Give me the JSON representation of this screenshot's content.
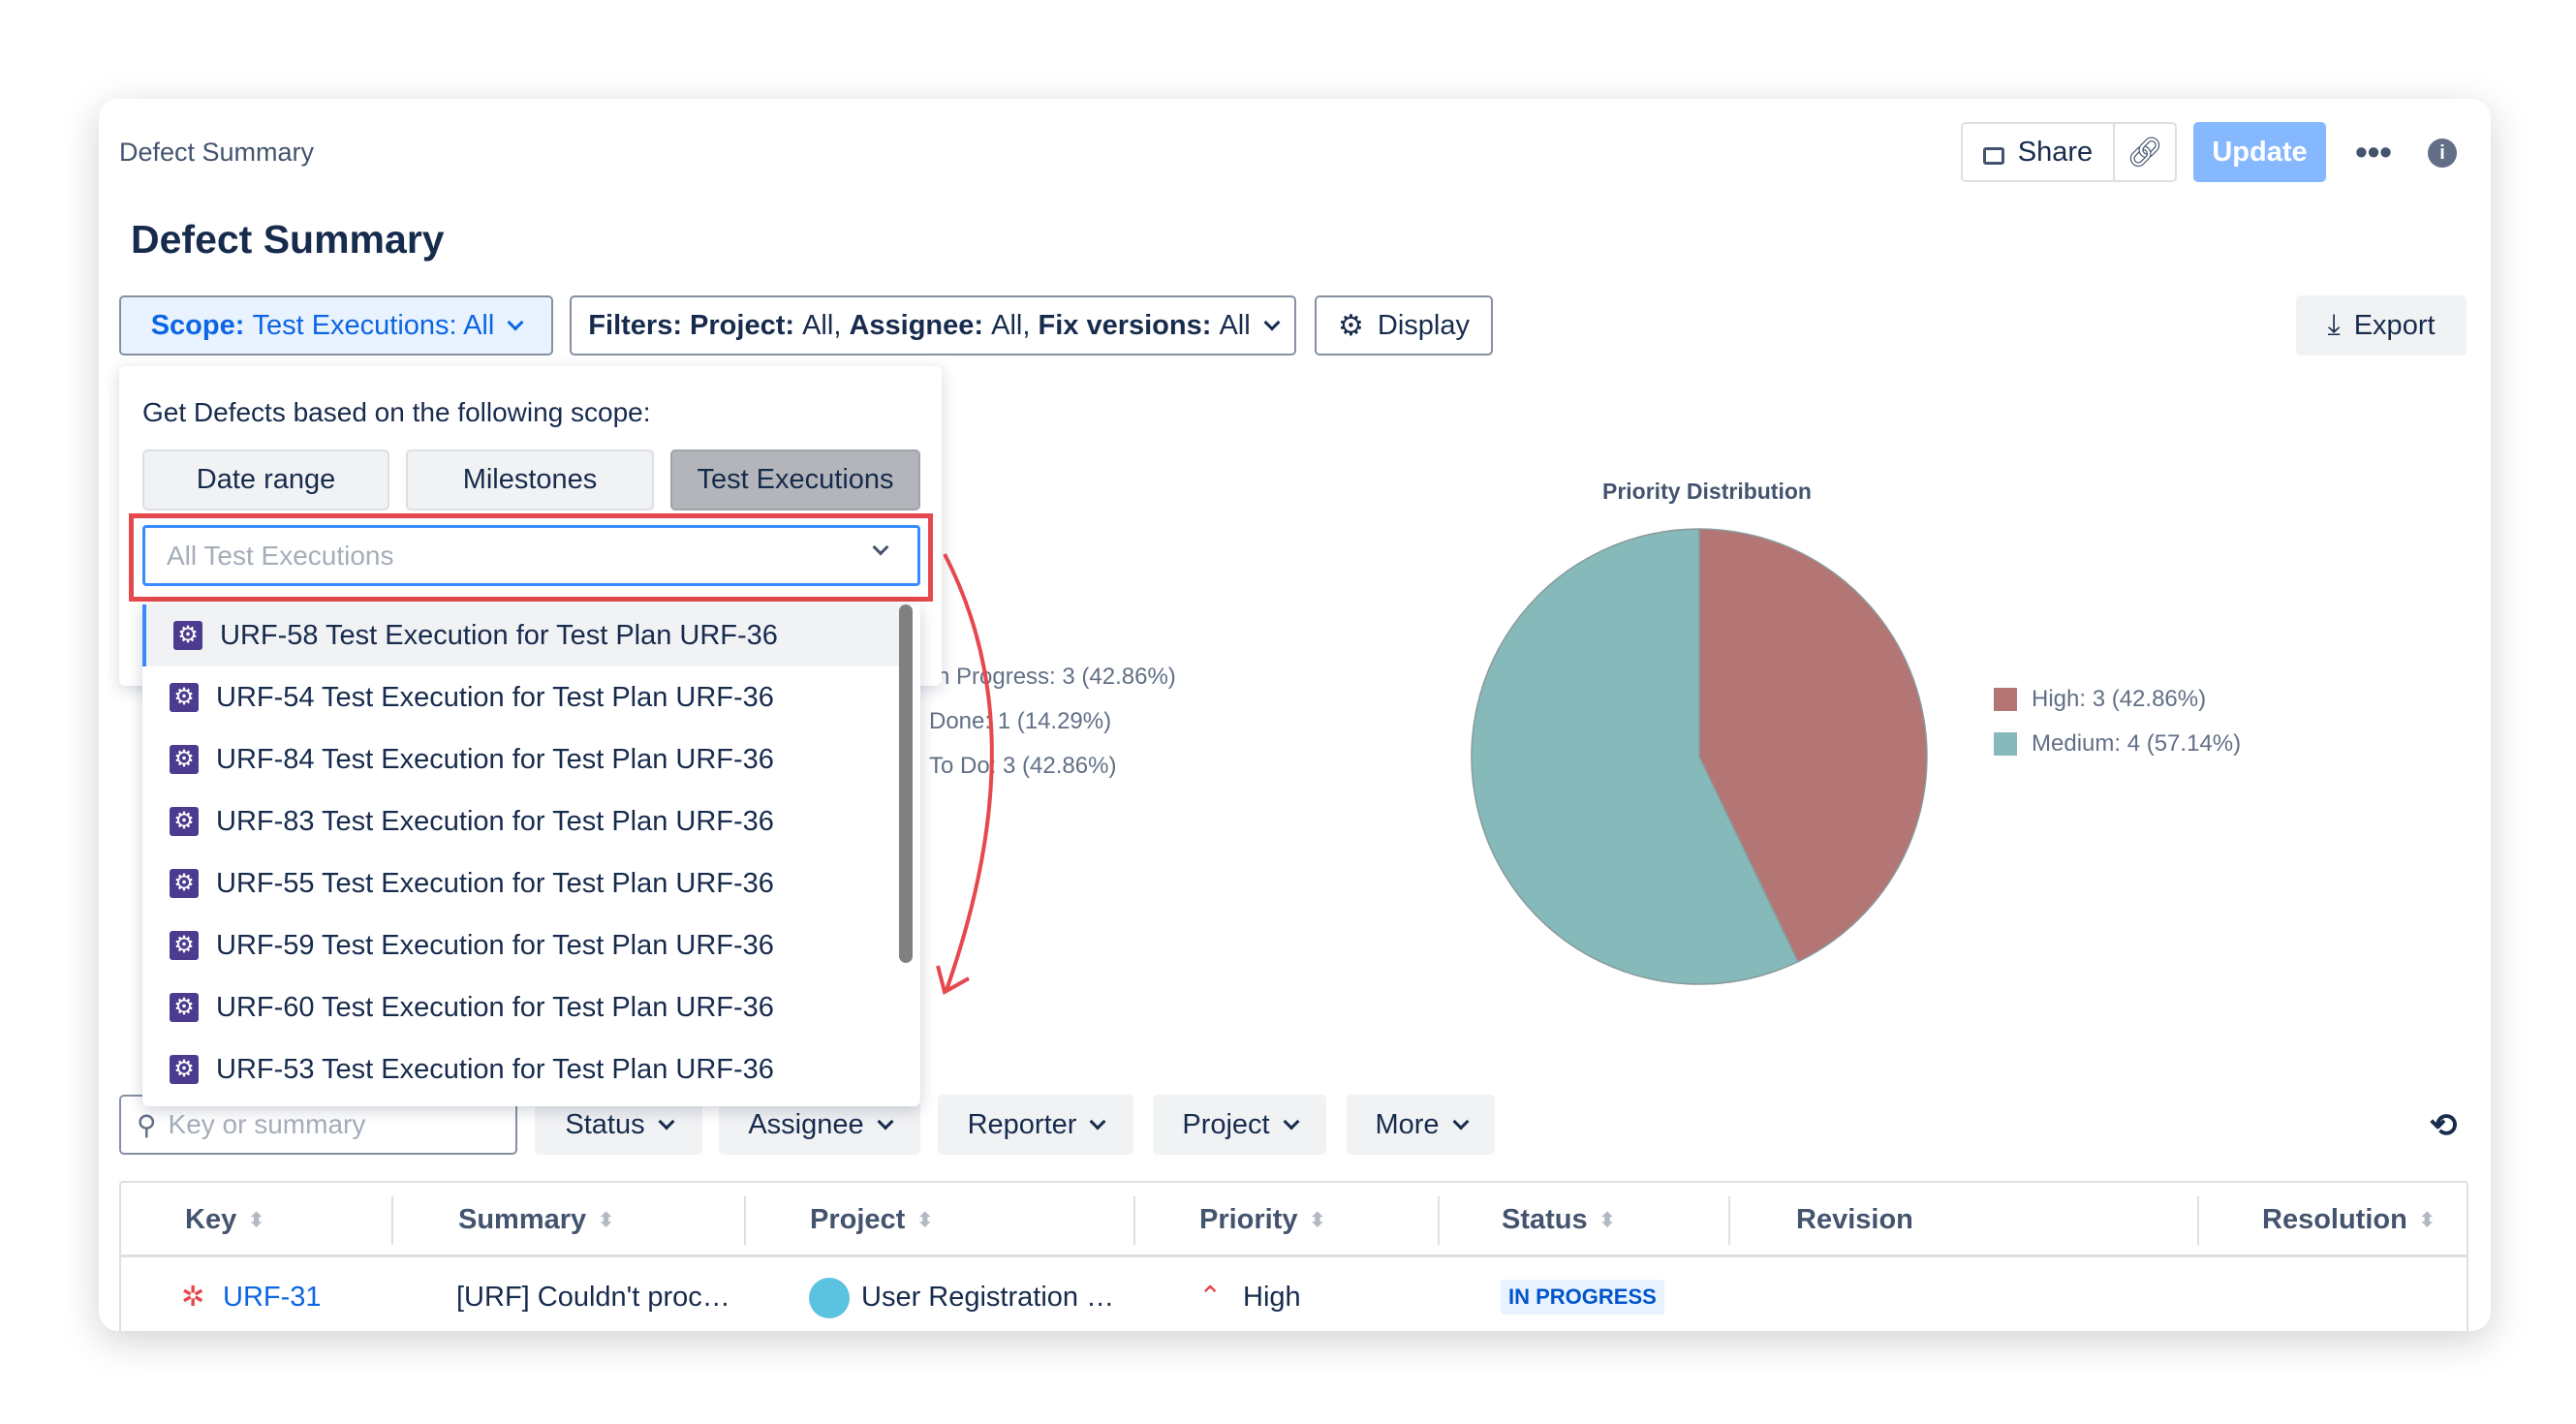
{
  "header": {
    "breadcrumb": "Defect Summary",
    "title": "Defect Summary",
    "share_label": "Share",
    "update_label": "Update",
    "export_label": "Export"
  },
  "toolbar": {
    "scope_key": "Scope:",
    "scope_value": "Test Executions: All",
    "filters_key": "Filters:",
    "f1k": "Project:",
    "f1v": "All,",
    "f2k": "Assignee:",
    "f2v": "All,",
    "f3k": "Fix versions:",
    "f3v": "All",
    "display_label": "Display"
  },
  "scope_popup": {
    "prompt": "Get Defects based on the following scope:",
    "tabs": [
      "Date range",
      "Milestones",
      "Test Executions"
    ],
    "selected_tab": "Test Executions",
    "select_placeholder": "All Test Executions",
    "options": [
      "URF-58 Test Execution for Test Plan URF-36",
      "URF-54 Test Execution for Test Plan URF-36",
      "URF-84 Test Execution for Test Plan URF-36",
      "URF-83 Test Execution for Test Plan URF-36",
      "URF-55 Test Execution for Test Plan URF-36",
      "URF-59 Test Execution for Test Plan URF-36",
      "URF-60 Test Execution for Test Plan URF-36",
      "URF-53 Test Execution for Test Plan URF-36"
    ]
  },
  "status_legend": [
    "n Progress: 3 (42.86%)",
    "Done: 1 (14.29%)",
    "To Do: 3 (42.86%)"
  ],
  "chart_data": {
    "type": "pie",
    "title": "Priority Distribution",
    "legend": "right",
    "slices": [
      {
        "label": "High: 3 (42.86%)",
        "value": 3,
        "color": "#b47675"
      },
      {
        "label": "Medium: 4 (57.14%)",
        "value": 4,
        "color": "#86b9ba"
      }
    ]
  },
  "filter_bar": {
    "search_placeholder": "Key or summary",
    "filters": [
      "Status",
      "Assignee",
      "Reporter",
      "Project",
      "More"
    ]
  },
  "table": {
    "columns": [
      "Key",
      "Summary",
      "Project",
      "Priority",
      "Status",
      "Revision",
      "Resolution"
    ],
    "rows": [
      {
        "key": "URF-31",
        "summary": "[URF] Couldn't proc…",
        "project": "User Registration …",
        "priority": "High",
        "status": "IN PROGRESS"
      }
    ]
  },
  "colors": {
    "accent": "#0c66e4",
    "update_bg": "#85b8ff",
    "annotation": "#e5484d"
  }
}
